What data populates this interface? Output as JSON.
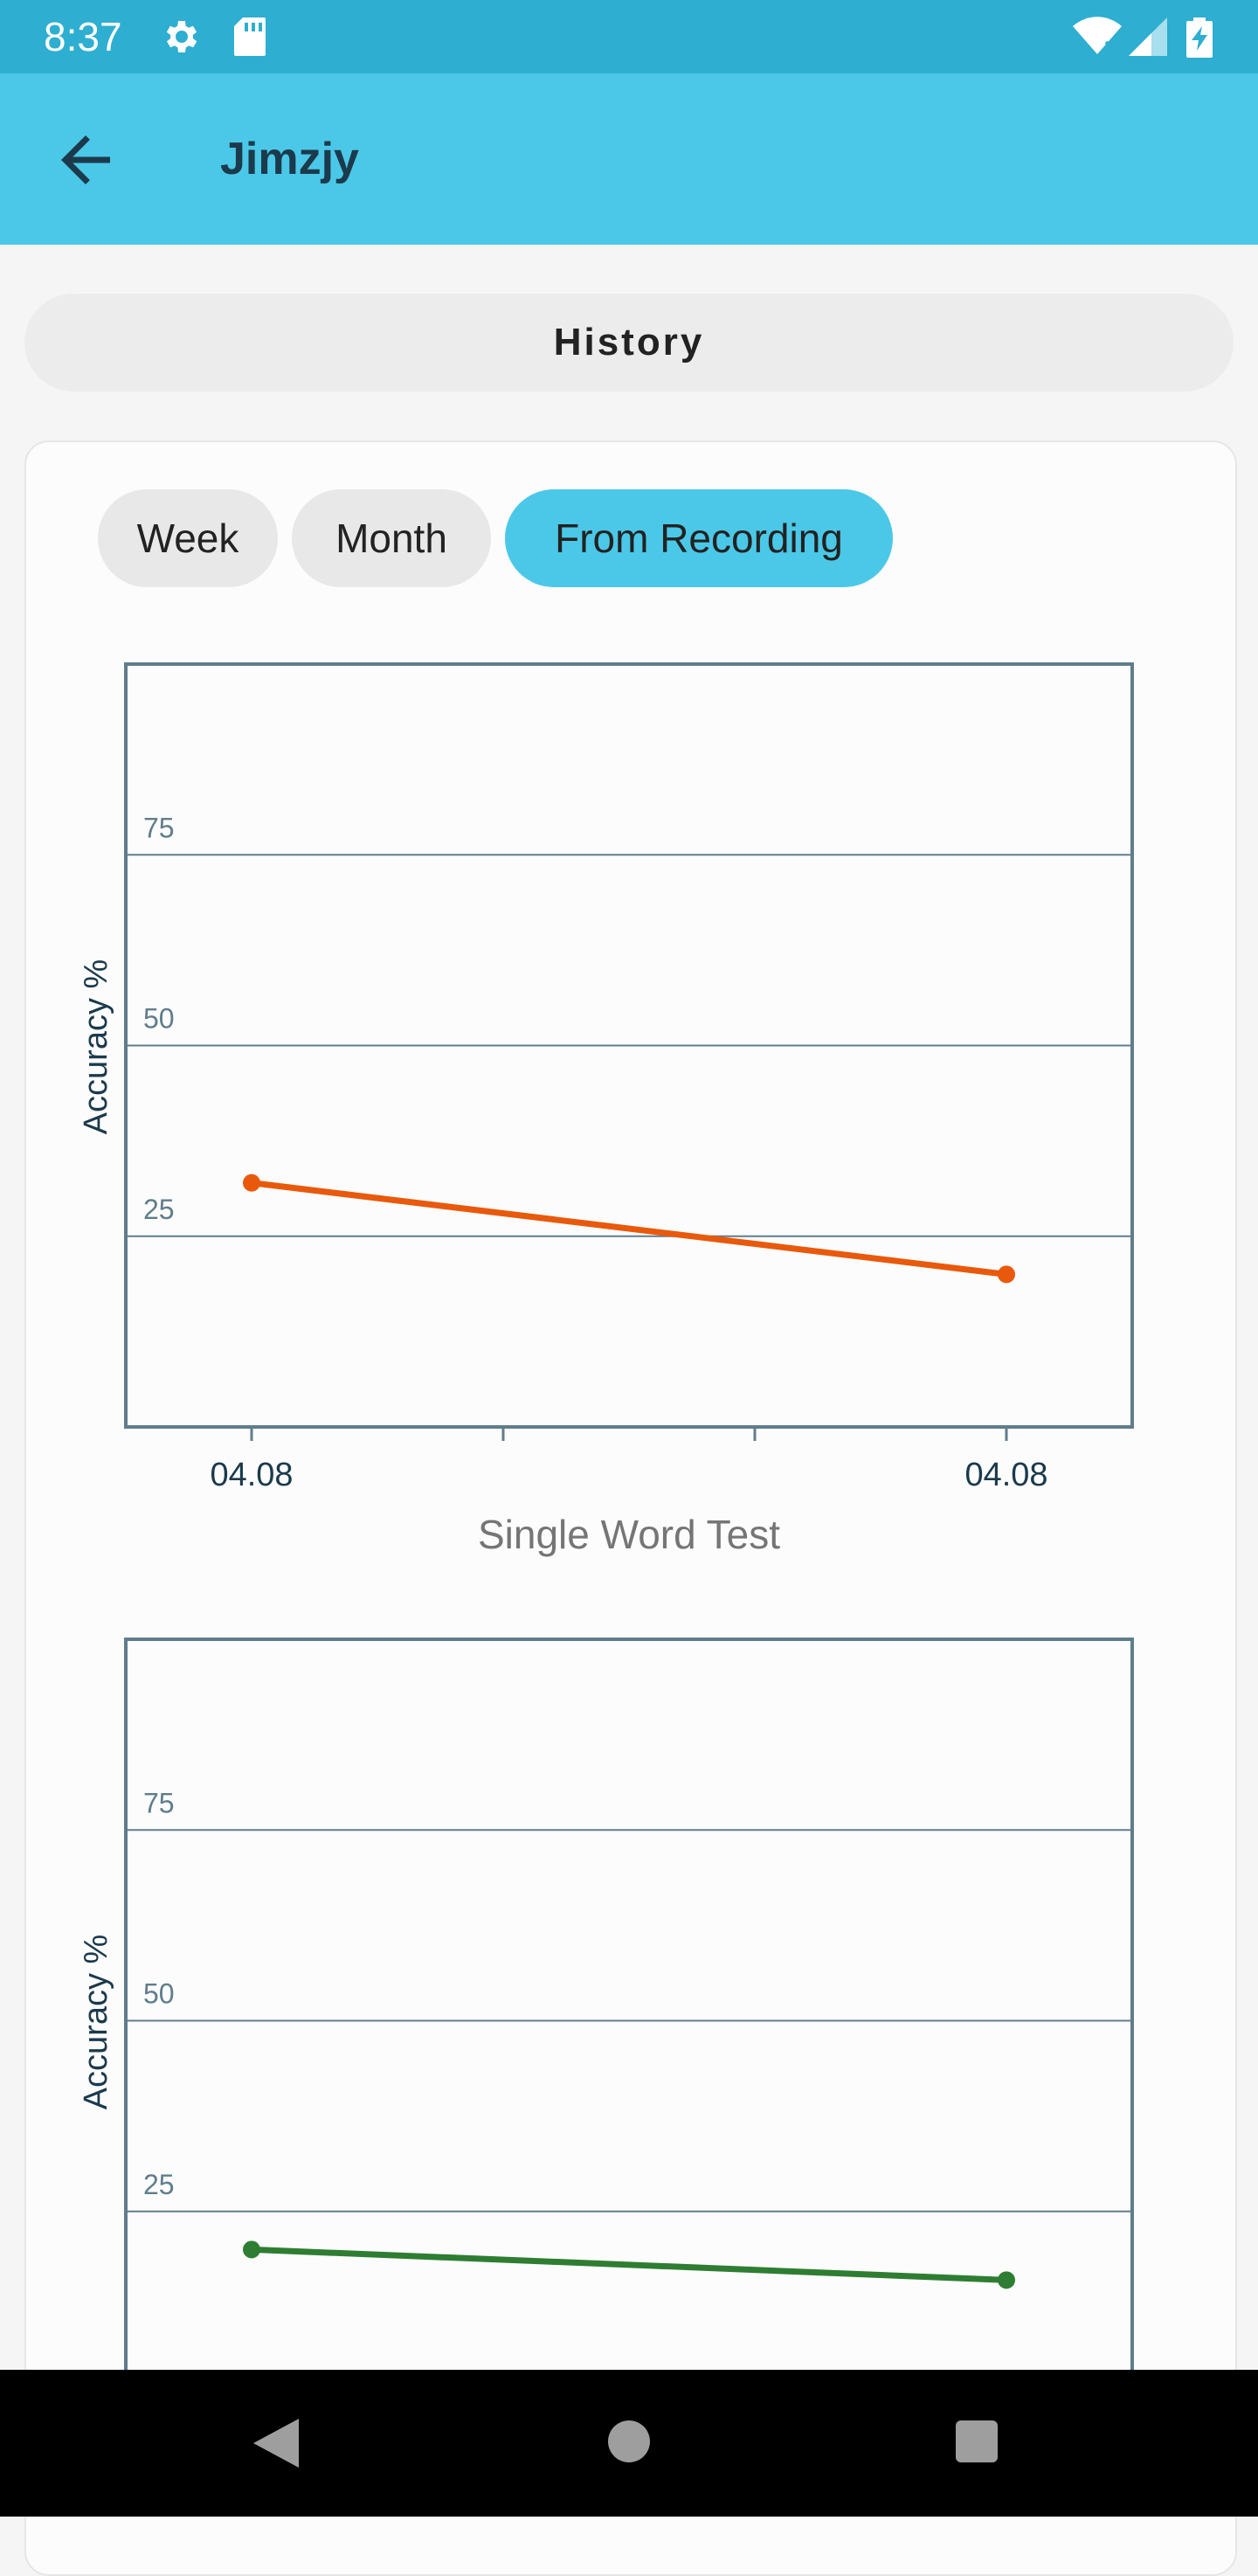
{
  "status_bar": {
    "time": "8:37",
    "icons": [
      "gear-icon",
      "sd-card-icon",
      "wifi-icon",
      "signal-icon",
      "battery-charging-icon"
    ]
  },
  "app_bar": {
    "title": "Jimzjy",
    "back_icon": "arrow-left-icon"
  },
  "history": {
    "title": "History"
  },
  "range_tabs": [
    {
      "label": "Week",
      "selected": false
    },
    {
      "label": "Month",
      "selected": false
    },
    {
      "label": "From Recording",
      "selected": true
    }
  ],
  "colors": {
    "accent": "#4bc8e7",
    "status_bar": "#2eaed0",
    "series_1": "#e8590c",
    "series_2": "#2e7d32"
  },
  "chart_data": [
    {
      "type": "line",
      "title": "Single Word Test",
      "ylabel": "Accuracy %",
      "ylim": [
        0,
        100
      ],
      "yticks": [
        25,
        50,
        75
      ],
      "x": [
        "04.08",
        "04.08"
      ],
      "series": [
        {
          "values": [
            32,
            20
          ],
          "color": "#e8590c"
        }
      ]
    },
    {
      "type": "line",
      "title": "",
      "ylabel": "Accuracy %",
      "ylim": [
        0,
        100
      ],
      "yticks": [
        25,
        50,
        75
      ],
      "x": [
        "",
        ""
      ],
      "series": [
        {
          "values": [
            20,
            16
          ],
          "color": "#2e7d32"
        }
      ]
    }
  ],
  "nav_bar": {
    "icons": [
      "back-triangle-icon",
      "home-circle-icon",
      "recents-square-icon"
    ]
  }
}
